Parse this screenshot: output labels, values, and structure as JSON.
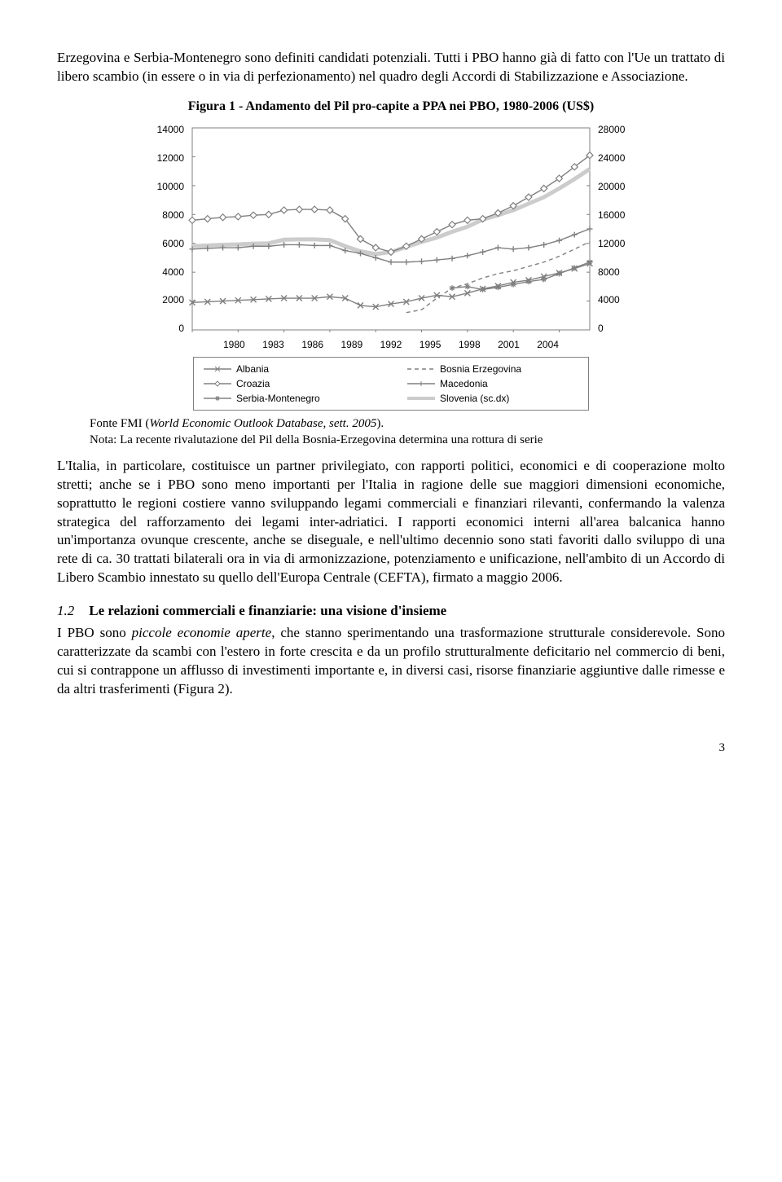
{
  "para1": "Erzegovina e Serbia-Montenegro sono definiti candidati potenziali. Tutti i PBO hanno già di fatto con l'Ue un trattato di libero scambio (in essere o in via di perfezionamento) nel quadro degli Accordi di Stabilizzazione e Associazione.",
  "figure": {
    "title": "Figura 1 - Andamento del Pil pro-capite a PPA nei PBO, 1980-2006 (US$)",
    "y_left": {
      "min": 0,
      "max": 14000,
      "step": 2000
    },
    "y_right": {
      "min": 0,
      "max": 28000,
      "step": 4000
    },
    "x_ticks": [
      1980,
      1983,
      1986,
      1989,
      1992,
      1995,
      1998,
      2001,
      2004
    ],
    "years": [
      1980,
      1981,
      1982,
      1983,
      1984,
      1985,
      1986,
      1987,
      1988,
      1989,
      1990,
      1991,
      1992,
      1993,
      1994,
      1995,
      1996,
      1997,
      1998,
      1999,
      2000,
      2001,
      2002,
      2003,
      2004,
      2005,
      2006
    ],
    "series": {
      "albania": {
        "label": "Albania",
        "color": "#808080",
        "dash": null,
        "marker": "x",
        "axis": "left",
        "data": [
          1900,
          1950,
          2000,
          2050,
          2100,
          2150,
          2200,
          2200,
          2200,
          2300,
          2200,
          1700,
          1600,
          1800,
          1950,
          2200,
          2400,
          2300,
          2550,
          2850,
          3050,
          3300,
          3450,
          3700,
          3950,
          4250,
          4600
        ]
      },
      "bosnia": {
        "label": "Bosnia Erzegovina",
        "color": "#808080",
        "dash": "5,4",
        "marker": null,
        "axis": "left",
        "data": [
          null,
          null,
          null,
          null,
          null,
          null,
          null,
          null,
          null,
          null,
          null,
          null,
          null,
          null,
          1200,
          1400,
          2200,
          2900,
          3200,
          3600,
          3900,
          4100,
          4400,
          4700,
          5100,
          5600,
          6100
        ]
      },
      "croazia": {
        "label": "Croazia",
        "color": "#808080",
        "dash": null,
        "marker": "diamond",
        "axis": "left",
        "data": [
          7600,
          7700,
          7800,
          7850,
          7950,
          8000,
          8300,
          8350,
          8350,
          8300,
          7700,
          6300,
          5700,
          5400,
          5800,
          6300,
          6800,
          7300,
          7600,
          7700,
          8100,
          8600,
          9200,
          9800,
          10500,
          11300,
          12100
        ]
      },
      "macedonia": {
        "label": "Macedonia",
        "color": "#808080",
        "dash": null,
        "marker": "plus",
        "axis": "left",
        "data": [
          5600,
          5650,
          5700,
          5700,
          5800,
          5800,
          5900,
          5900,
          5850,
          5850,
          5500,
          5300,
          5000,
          4700,
          4700,
          4750,
          4850,
          4950,
          5150,
          5400,
          5700,
          5600,
          5700,
          5900,
          6200,
          6600,
          7000
        ]
      },
      "serbia": {
        "label": "Serbia-Montenegro",
        "color": "#808080",
        "dash": null,
        "marker": "asterisk",
        "axis": "left",
        "data": [
          null,
          null,
          null,
          null,
          null,
          null,
          null,
          null,
          null,
          null,
          null,
          null,
          null,
          null,
          null,
          null,
          null,
          2900,
          3000,
          2800,
          2950,
          3150,
          3350,
          3500,
          3900,
          4300,
          4700
        ]
      },
      "slovenia": {
        "label": "Slovenia (sc.dx)",
        "color": "#cccccc",
        "dash": null,
        "marker": null,
        "axis": "right",
        "data": [
          11600,
          11700,
          11800,
          11850,
          11950,
          12000,
          12500,
          12550,
          12550,
          12450,
          11600,
          10900,
          10500,
          10800,
          11500,
          12200,
          12800,
          13600,
          14300,
          15300,
          15900,
          16600,
          17500,
          18400,
          19600,
          20900,
          22300
        ]
      }
    },
    "legend_order": [
      "albania",
      "bosnia",
      "croazia",
      "macedonia",
      "serbia",
      "slovenia"
    ],
    "grid_color": "#808080",
    "background_color": "#ffffff",
    "note_prefix": "Fonte FMI (",
    "note_italic": "World Economic Outlook Database, sett. 2005",
    "note_suffix": ").",
    "note2": "Nota: La recente rivalutazione del Pil della Bosnia-Erzegovina determina una rottura di serie"
  },
  "para2": "L'Italia, in particolare, costituisce un partner privilegiato, con rapporti politici, economici e di cooperazione molto stretti; anche se i PBO sono meno importanti per l'Italia in ragione delle sue maggiori dimensioni economiche, soprattutto le regioni costiere vanno sviluppando legami commerciali e finanziari rilevanti, confermando la valenza strategica del rafforzamento dei legami inter-adriatici. I rapporti economici interni all'area balcanica hanno un'importanza ovunque crescente, anche se diseguale, e nell'ultimo decennio sono stati favoriti dallo sviluppo di una rete di ca. 30 trattati bilaterali ora in via di armonizzazione, potenziamento e unificazione, nell'ambito di un Accordo di Libero Scambio innestato su quello dell'Europa Centrale (CEFTA), firmato a maggio 2006.",
  "subhead": {
    "num": "1.2",
    "title": "Le relazioni commerciali e finanziarie: una visione d'insieme"
  },
  "para3": "I PBO sono piccole economie aperte, che stanno sperimentando una trasformazione strutturale considerevole. Sono caratterizzate da scambi con l'estero in forte crescita e da un profilo strutturalmente deficitario nel commercio di beni, cui si contrappone un afflusso di investimenti importante e, in diversi casi, risorse finanziarie aggiuntive dalle rimesse e da altri trasferimenti (Figura 2).",
  "para3_italic_span": "piccole economie aperte",
  "page_number": "3"
}
